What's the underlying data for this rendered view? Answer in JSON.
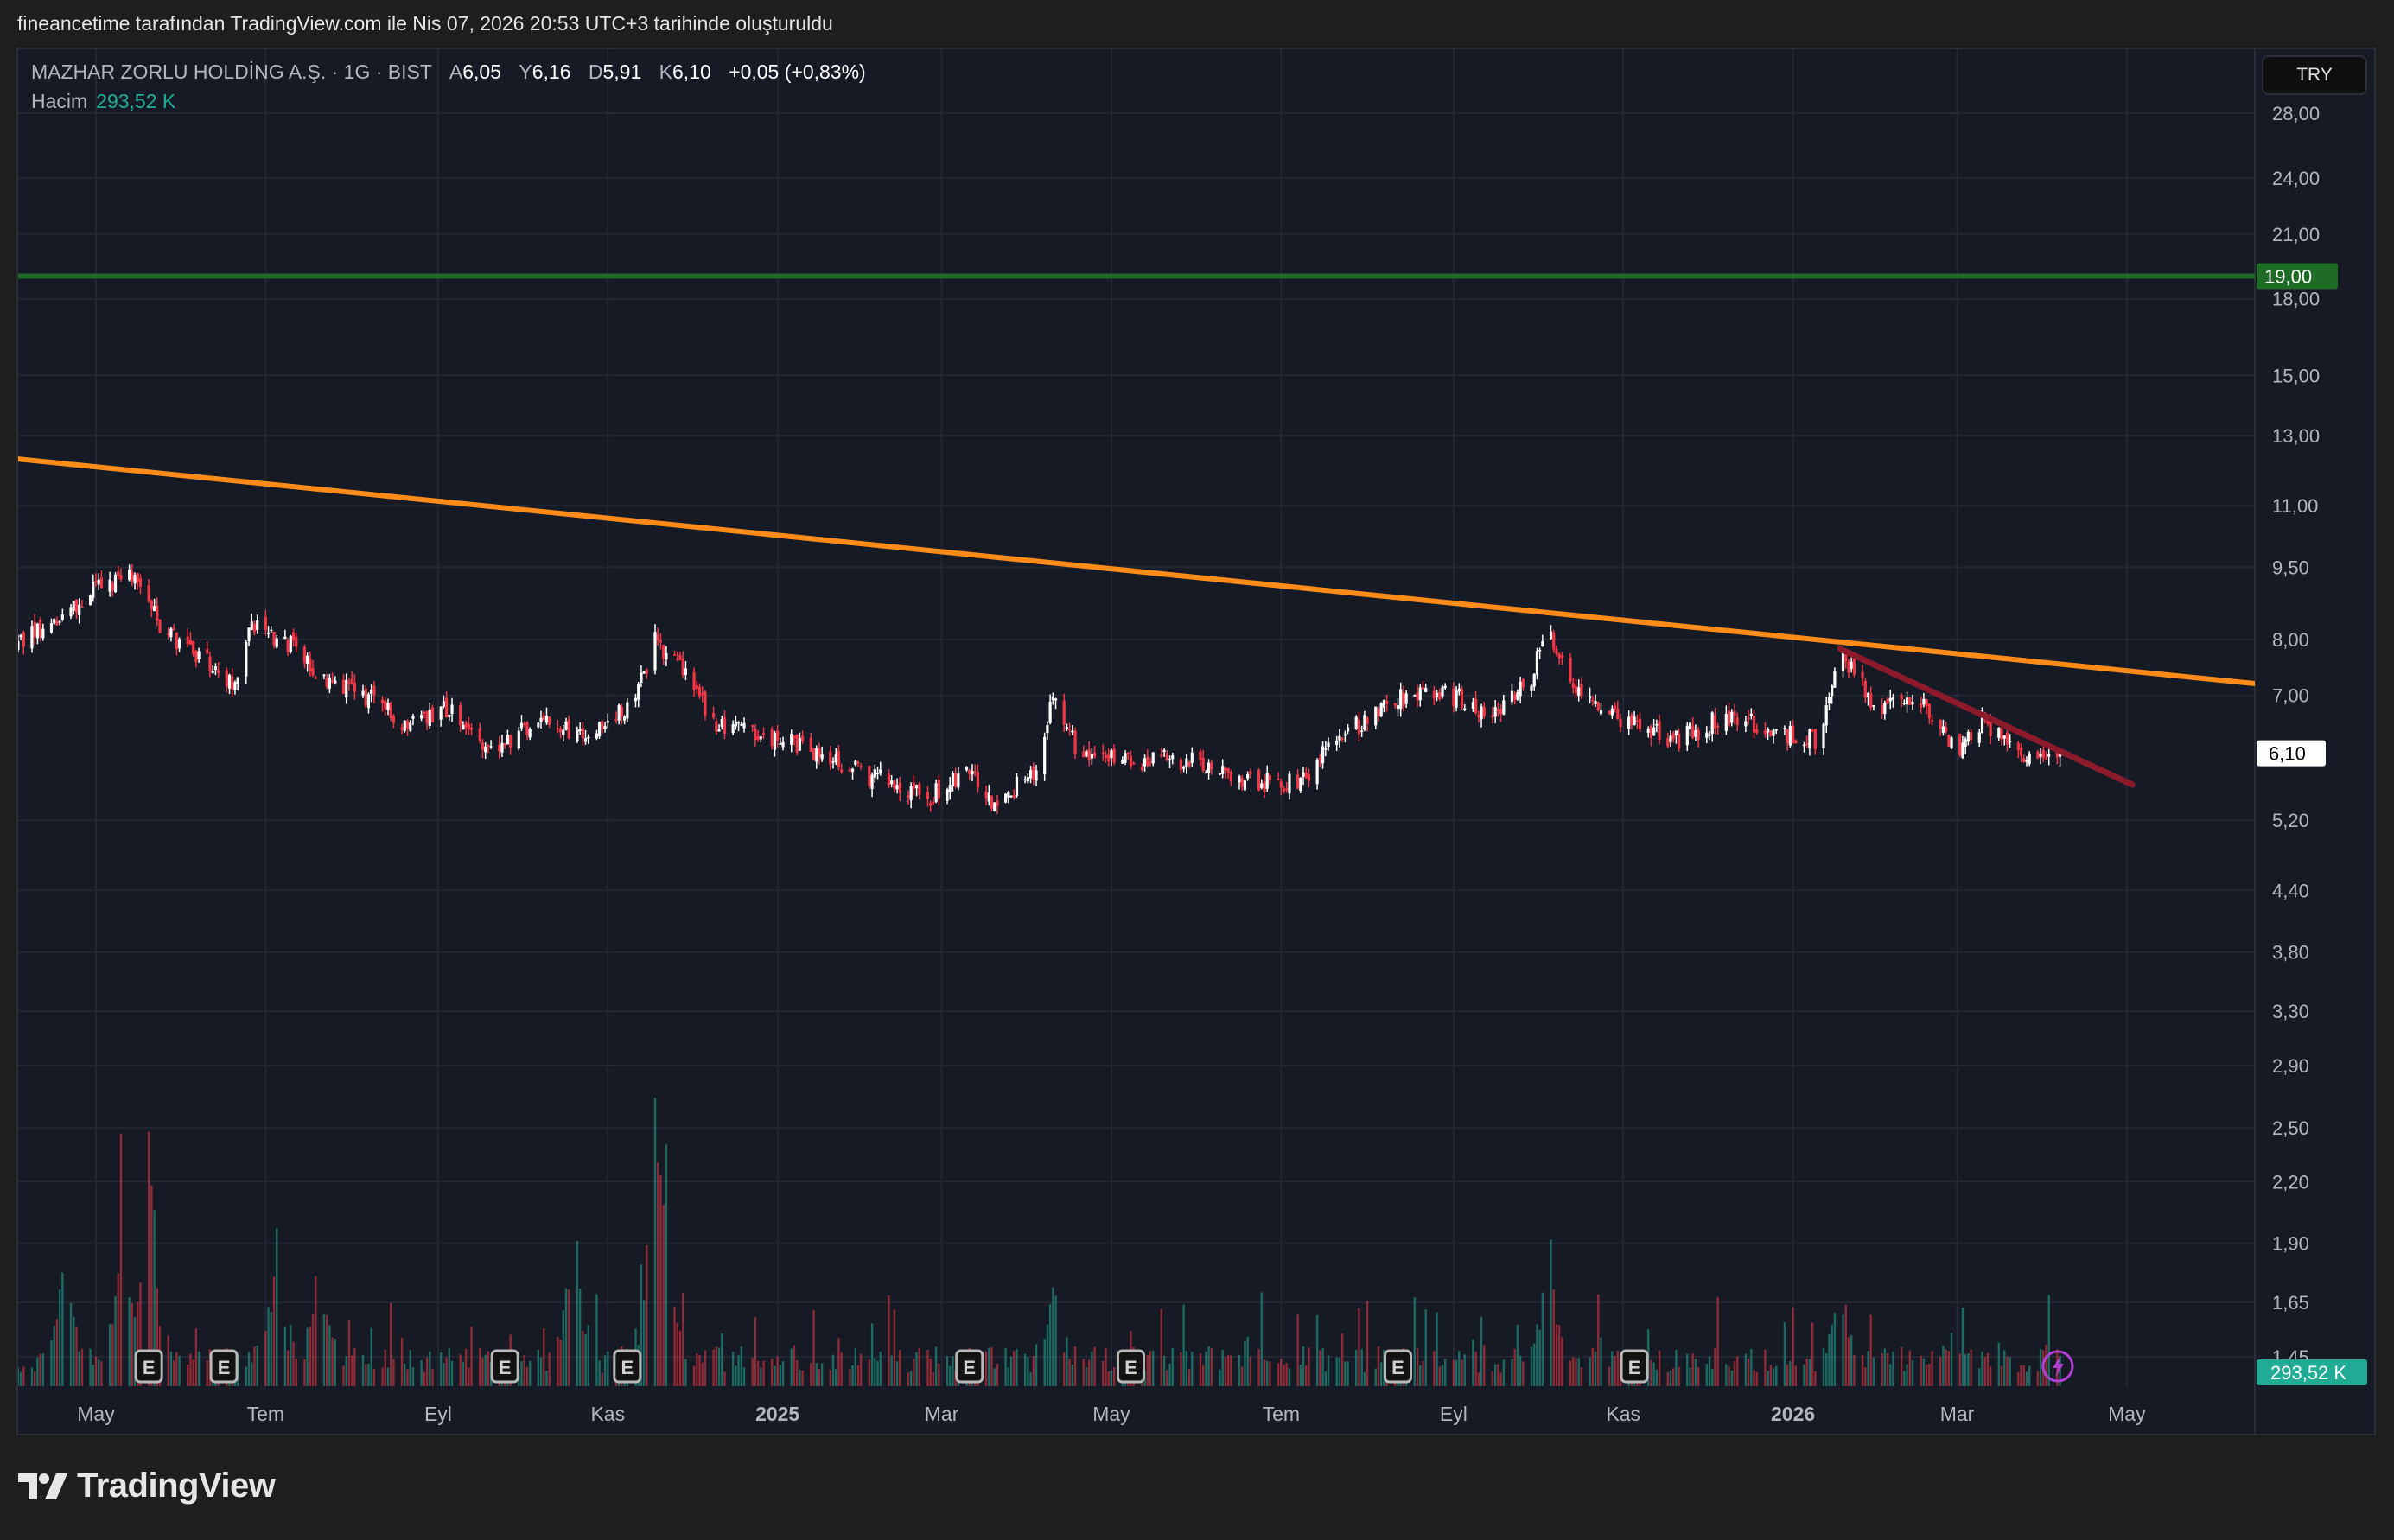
{
  "caption": "fineancetime tarafından TradingView.com ile Nis 07, 2026 20:53 UTC+3 tarihinde oluşturuldu",
  "legend": {
    "symbol": "MAZHAR ZORLU HOLDİNG A.Ş. · 1G · BIST",
    "open_label": "A",
    "open": "6,05",
    "high_label": "Y",
    "high": "6,16",
    "low_label": "D",
    "low": "5,91",
    "close_label": "K",
    "close": "6,10",
    "change": "+0,05 (+0,83%)",
    "volume_label": "Hacim",
    "volume": "293,52 K"
  },
  "currency_button": "TRY",
  "brand": "TradingView",
  "colors": {
    "up": "#ffffff",
    "down": "#f23645",
    "vol_up": "#22ab94",
    "vol_down": "#f23645",
    "orange_line": "#ff8c1a",
    "green_line": "#1e6b26",
    "red_line": "#8b1a2b",
    "last_price_bg": "#ffffff"
  },
  "chart_data": {
    "type": "candlestick",
    "title": "MAZHAR ZORLU HOLDİNG A.Ş. · 1G · BIST",
    "y_scale": "log",
    "ylim": [
      1.4,
      30
    ],
    "y_ticks": [
      "28,00",
      "24,00",
      "21,00",
      "18,00",
      "15,00",
      "13,00",
      "11,00",
      "9,50",
      "8,00",
      "7,00",
      "5,20",
      "4,40",
      "3,80",
      "3,30",
      "2,90",
      "2,50",
      "2,20",
      "1,90",
      "1,65",
      "1,45"
    ],
    "y_tick_values": [
      28,
      24,
      21,
      18,
      15,
      13,
      11,
      9.5,
      8,
      7,
      5.2,
      4.4,
      3.8,
      3.3,
      2.9,
      2.5,
      2.2,
      1.9,
      1.65,
      1.45
    ],
    "x_range": [
      "2024-04-02",
      "2026-06-16"
    ],
    "x_ticks": [
      {
        "label": "May",
        "date": "2024-05-01"
      },
      {
        "label": "Tem",
        "date": "2024-07-01"
      },
      {
        "label": "Eyl",
        "date": "2024-09-01"
      },
      {
        "label": "Kas",
        "date": "2024-11-01"
      },
      {
        "label": "2025",
        "date": "2025-01-01",
        "bold": true
      },
      {
        "label": "Mar",
        "date": "2025-03-01"
      },
      {
        "label": "May",
        "date": "2025-05-01"
      },
      {
        "label": "Tem",
        "date": "2025-07-01"
      },
      {
        "label": "Eyl",
        "date": "2025-09-01"
      },
      {
        "label": "Kas",
        "date": "2025-11-01"
      },
      {
        "label": "2026",
        "date": "2026-01-01",
        "bold": true
      },
      {
        "label": "Mar",
        "date": "2026-03-01"
      },
      {
        "label": "May",
        "date": "2026-05-01"
      }
    ],
    "close_path": [
      [
        "2024-04-02",
        7.9
      ],
      [
        "2024-04-15",
        8.3
      ],
      [
        "2024-04-30",
        9.0
      ],
      [
        "2024-05-15",
        9.3
      ],
      [
        "2024-05-25",
        8.2
      ],
      [
        "2024-06-20",
        7.2
      ],
      [
        "2024-06-25",
        8.3
      ],
      [
        "2024-07-10",
        7.9
      ],
      [
        "2024-07-20",
        7.3
      ],
      [
        "2024-08-10",
        6.9
      ],
      [
        "2024-08-20",
        6.5
      ],
      [
        "2024-09-05",
        6.8
      ],
      [
        "2024-09-20",
        6.1
      ],
      [
        "2024-10-05",
        6.6
      ],
      [
        "2024-10-25",
        6.4
      ],
      [
        "2024-11-10",
        6.8
      ],
      [
        "2024-11-18",
        8.0
      ],
      [
        "2024-11-30",
        7.3
      ],
      [
        "2024-12-10",
        6.5
      ],
      [
        "2025-01-10",
        6.2
      ],
      [
        "2025-02-01",
        5.8
      ],
      [
        "2025-02-25",
        5.5
      ],
      [
        "2025-03-10",
        5.9
      ],
      [
        "2025-03-20",
        5.4
      ],
      [
        "2025-04-05",
        5.9
      ],
      [
        "2025-04-10",
        7.0
      ],
      [
        "2025-04-20",
        6.0
      ],
      [
        "2025-05-10",
        6.0
      ],
      [
        "2025-06-01",
        6.0
      ],
      [
        "2025-06-20",
        5.7
      ],
      [
        "2025-07-10",
        5.7
      ],
      [
        "2025-07-20",
        6.3
      ],
      [
        "2025-08-15",
        7.0
      ],
      [
        "2025-09-01",
        7.0
      ],
      [
        "2025-09-15",
        6.6
      ],
      [
        "2025-09-28",
        7.2
      ],
      [
        "2025-10-05",
        8.2
      ],
      [
        "2025-10-15",
        7.0
      ],
      [
        "2025-11-01",
        6.6
      ],
      [
        "2025-11-20",
        6.3
      ],
      [
        "2025-12-10",
        6.7
      ],
      [
        "2025-12-25",
        6.4
      ],
      [
        "2026-01-10",
        6.3
      ],
      [
        "2026-01-18",
        7.8
      ],
      [
        "2026-01-30",
        6.8
      ],
      [
        "2026-02-15",
        6.9
      ],
      [
        "2026-03-01",
        6.1
      ],
      [
        "2026-03-10",
        6.6
      ],
      [
        "2026-03-25",
        6.0
      ],
      [
        "2026-04-07",
        6.1
      ]
    ],
    "volume_spikes": [
      [
        "2024-04-20",
        0.45
      ],
      [
        "2024-05-10",
        0.55
      ],
      [
        "2024-05-20",
        1.0
      ],
      [
        "2024-07-05",
        0.5
      ],
      [
        "2024-07-20",
        0.4
      ],
      [
        "2024-10-20",
        0.6
      ],
      [
        "2024-11-18",
        0.95
      ],
      [
        "2024-11-22",
        0.6
      ],
      [
        "2025-04-10",
        0.3
      ],
      [
        "2025-10-05",
        0.55
      ],
      [
        "2026-01-18",
        0.4
      ]
    ],
    "horizontal_line": {
      "price": 19.0,
      "label": "19,00"
    },
    "trendlines": [
      {
        "name": "orange-resistance",
        "from": [
          "2024-04-02",
          12.3
        ],
        "to": [
          "2026-06-16",
          7.2
        ]
      },
      {
        "name": "red-descending",
        "from": [
          "2026-01-18",
          7.82
        ],
        "to": [
          "2026-05-03",
          5.66
        ]
      }
    ],
    "last_price": {
      "value": 6.1,
      "label": "6,10"
    },
    "last_volume_label": "293,52 K",
    "earnings_markers": {
      "label": "E",
      "dates": [
        "2024-05-20",
        "2024-06-16",
        "2024-09-25",
        "2024-11-08",
        "2025-03-11",
        "2025-05-08",
        "2025-08-12",
        "2025-11-05"
      ]
    }
  }
}
